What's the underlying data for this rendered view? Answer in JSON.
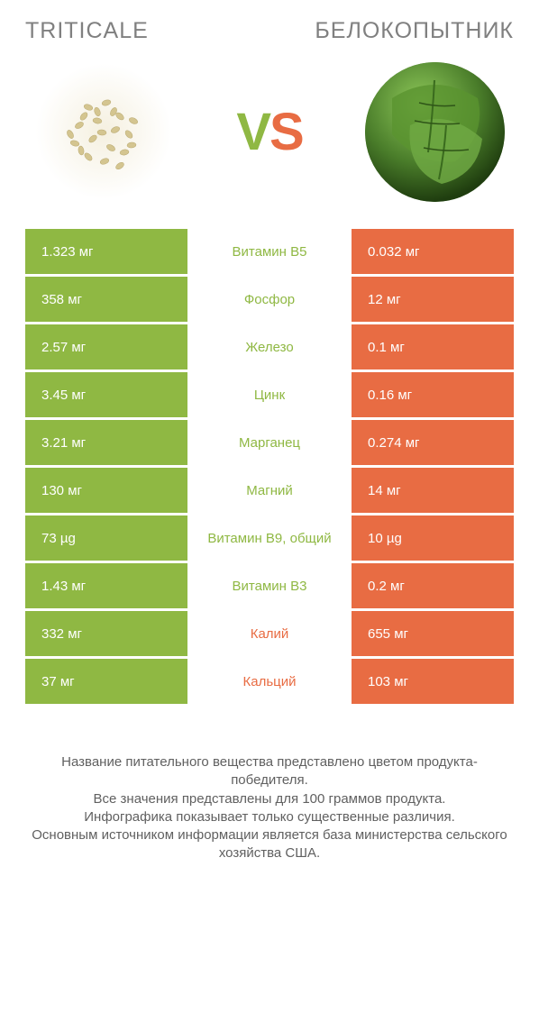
{
  "colors": {
    "green": "#8fb843",
    "orange": "#e86c43",
    "text_gray": "#808080",
    "footer_gray": "#606060",
    "white": "#ffffff"
  },
  "header": {
    "left_title": "TRITICALE",
    "right_title": "БЕЛОКОПЫТНИК",
    "vs_v": "V",
    "vs_s": "S"
  },
  "rows": [
    {
      "left": "1.323 мг",
      "mid": "Витамин B5",
      "right": "0.032 мг",
      "winner": "left"
    },
    {
      "left": "358 мг",
      "mid": "Фосфор",
      "right": "12 мг",
      "winner": "left"
    },
    {
      "left": "2.57 мг",
      "mid": "Железо",
      "right": "0.1 мг",
      "winner": "left"
    },
    {
      "left": "3.45 мг",
      "mid": "Цинк",
      "right": "0.16 мг",
      "winner": "left"
    },
    {
      "left": "3.21 мг",
      "mid": "Марганец",
      "right": "0.274 мг",
      "winner": "left"
    },
    {
      "left": "130 мг",
      "mid": "Магний",
      "right": "14 мг",
      "winner": "left"
    },
    {
      "left": "73 µg",
      "mid": "Витамин B9, общий",
      "right": "10 µg",
      "winner": "left"
    },
    {
      "left": "1.43 мг",
      "mid": "Витамин B3",
      "right": "0.2 мг",
      "winner": "left"
    },
    {
      "left": "332 мг",
      "mid": "Калий",
      "right": "655 мг",
      "winner": "right"
    },
    {
      "left": "37 мг",
      "mid": "Кальций",
      "right": "103 мг",
      "winner": "right"
    }
  ],
  "footer": {
    "line1": "Название питательного вещества представлено цветом продукта-победителя.",
    "line2": "Все значения представлены для 100 граммов продукта.",
    "line3": "Инфографика показывает только существенные различия.",
    "line4": "Основным источником информации является база министерства сельского хозяйства США."
  }
}
